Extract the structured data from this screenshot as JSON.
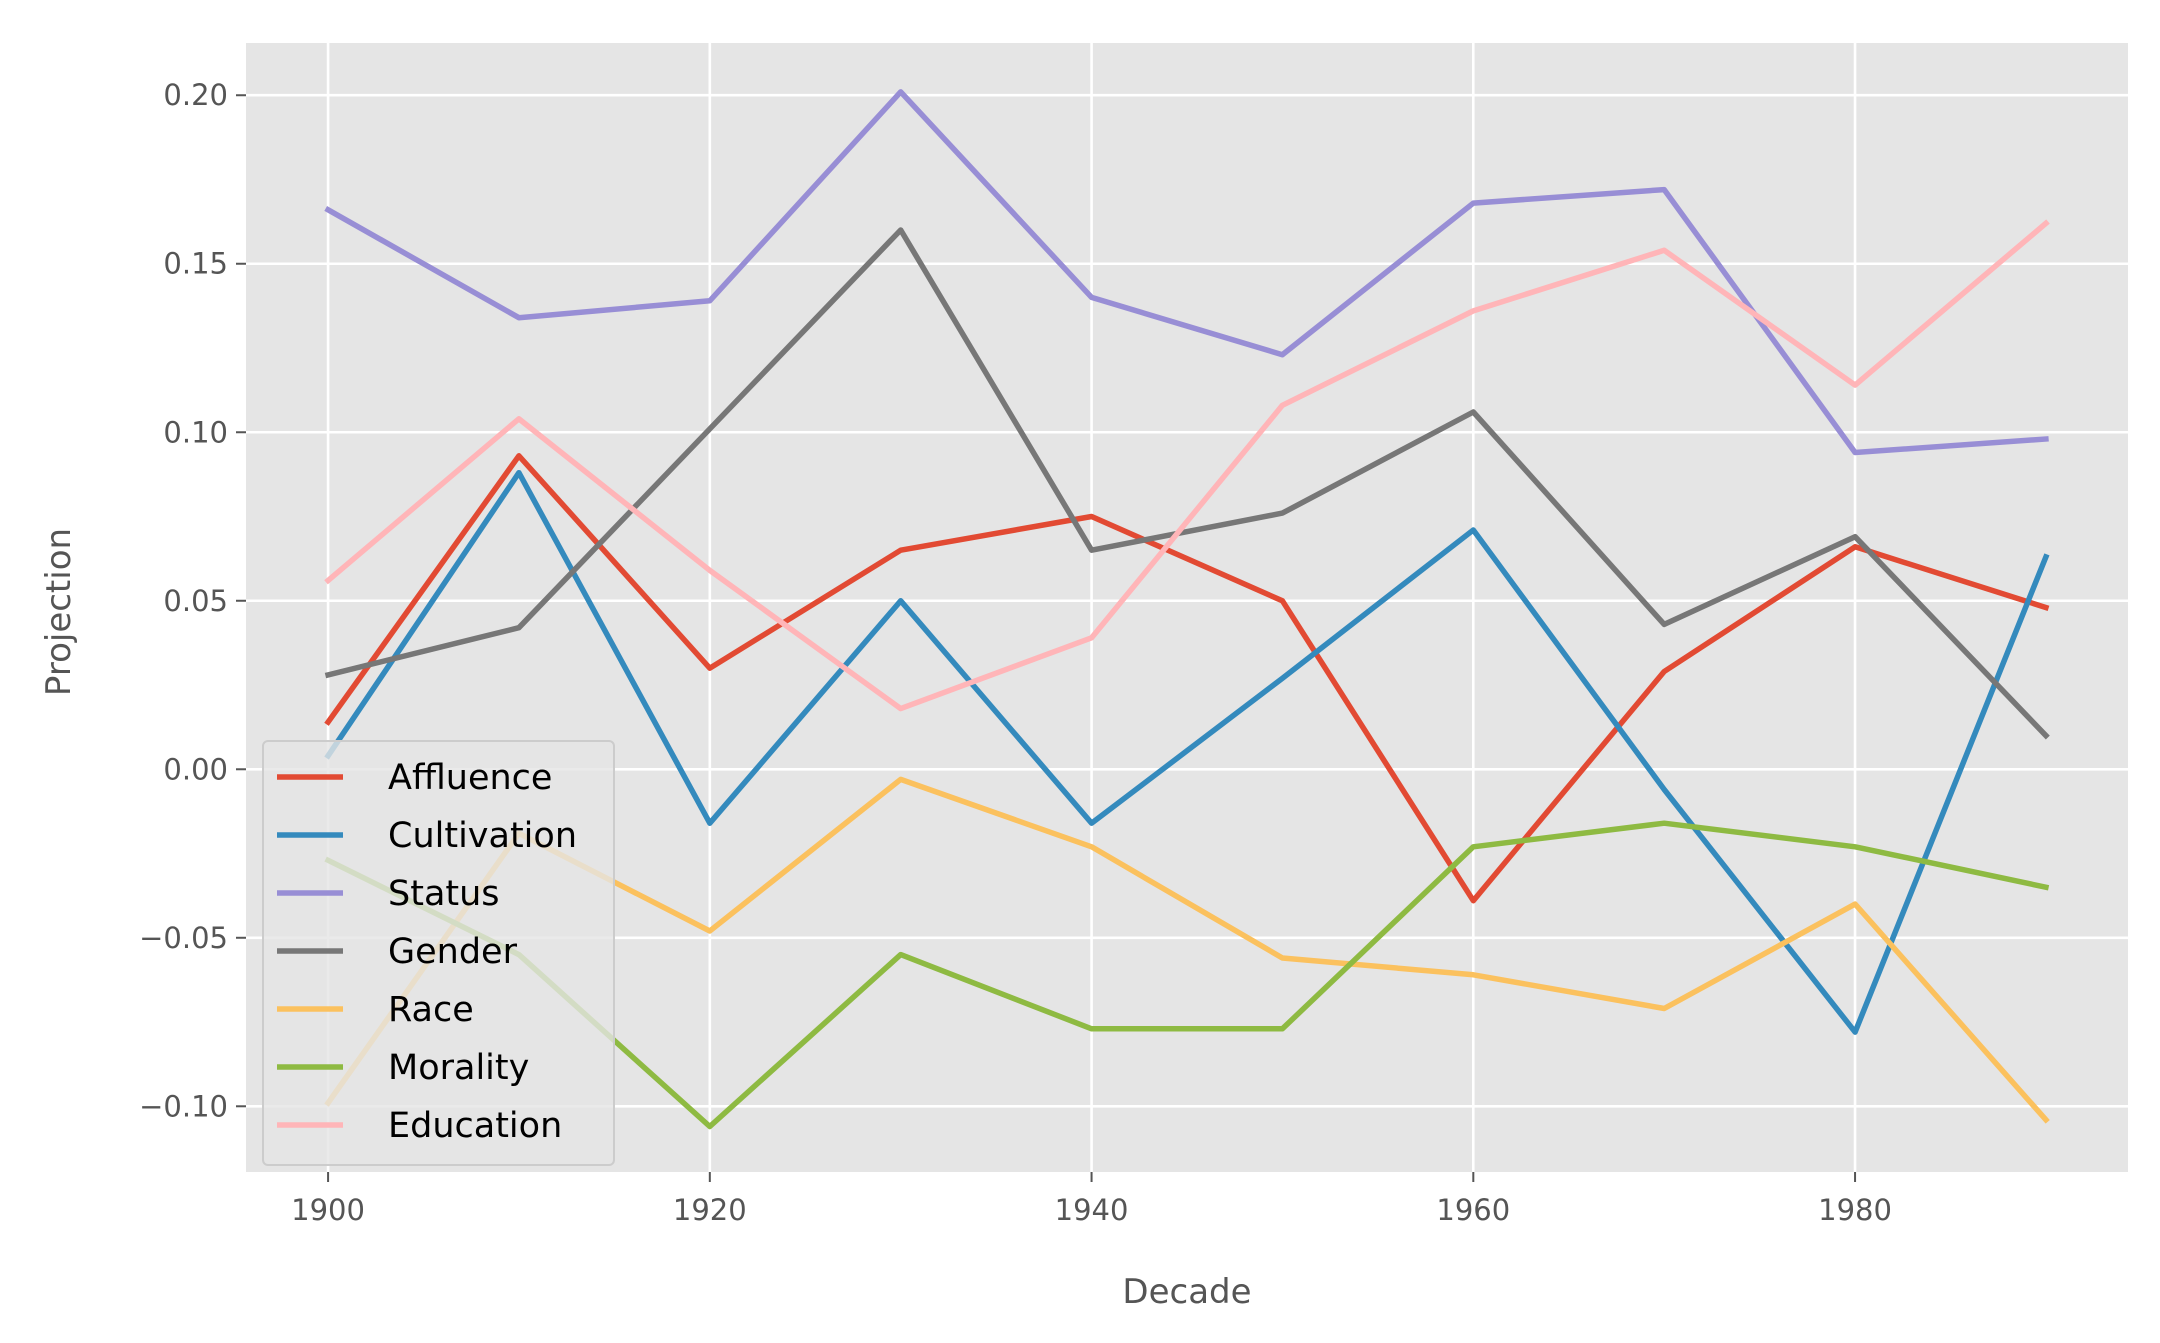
{
  "chart_data": {
    "type": "line",
    "title": "",
    "xlabel": "Decade",
    "ylabel": "Projection",
    "x": [
      1900,
      1910,
      1920,
      1930,
      1940,
      1950,
      1960,
      1970,
      1980,
      1990
    ],
    "xlim": [
      1895.7,
      1994.3
    ],
    "ylim": [
      -0.1195,
      0.2155
    ],
    "xticks": [
      1900,
      1920,
      1940,
      1960,
      1980
    ],
    "yticks": [
      -0.1,
      -0.05,
      0.0,
      0.05,
      0.1,
      0.15,
      0.2
    ],
    "xtick_labels": [
      "1900",
      "1920",
      "1940",
      "1960",
      "1980"
    ],
    "ytick_labels": [
      "−0.10",
      "−0.05",
      "0.00",
      "0.05",
      "0.10",
      "0.15",
      "0.20"
    ],
    "grid": true,
    "legend_position": "lower-left",
    "series": [
      {
        "name": "Affluence",
        "color": "#E24A33",
        "values": [
          0.014,
          0.093,
          0.03,
          0.065,
          0.075,
          0.05,
          -0.039,
          0.029,
          0.066,
          0.048
        ]
      },
      {
        "name": "Cultivation",
        "color": "#348ABD",
        "values": [
          0.004,
          0.088,
          -0.016,
          0.05,
          -0.016,
          0.027,
          0.071,
          -0.006,
          -0.078,
          0.063
        ]
      },
      {
        "name": "Status",
        "color": "#988ED5",
        "values": [
          0.166,
          0.134,
          0.139,
          0.201,
          0.14,
          0.123,
          0.168,
          0.172,
          0.094,
          0.098
        ]
      },
      {
        "name": "Gender",
        "color": "#777777",
        "values": [
          0.028,
          0.042,
          0.101,
          0.16,
          0.065,
          0.076,
          0.106,
          0.043,
          0.069,
          0.01
        ]
      },
      {
        "name": "Race",
        "color": "#FBC15E",
        "values": [
          -0.099,
          -0.019,
          -0.048,
          -0.003,
          -0.023,
          -0.056,
          -0.061,
          -0.071,
          -0.04,
          -0.104
        ]
      },
      {
        "name": "Morality",
        "color": "#8EBA42",
        "values": [
          -0.027,
          -0.055,
          -0.106,
          -0.055,
          -0.077,
          -0.077,
          -0.023,
          -0.016,
          -0.023,
          -0.035
        ]
      },
      {
        "name": "Education",
        "color": "#FFB5B8",
        "values": [
          0.056,
          0.104,
          0.059,
          0.018,
          0.039,
          0.108,
          0.136,
          0.154,
          0.114,
          0.162
        ]
      }
    ]
  }
}
